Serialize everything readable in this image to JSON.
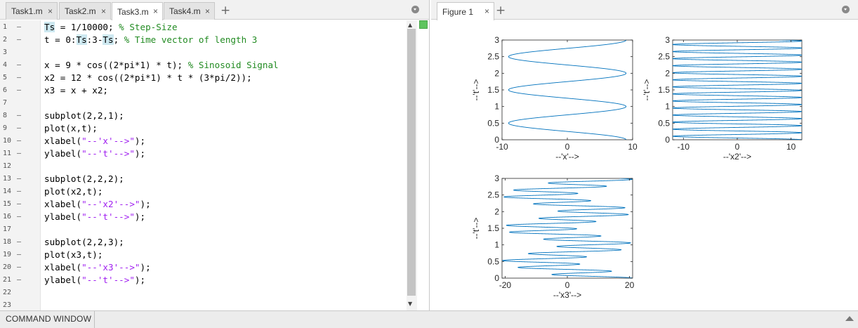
{
  "editor": {
    "tabs": [
      {
        "label": "Task1.m",
        "active": false
      },
      {
        "label": "Task2.m",
        "active": false
      },
      {
        "label": "Task3.m",
        "active": true
      },
      {
        "label": "Task4.m",
        "active": false
      }
    ],
    "close_glyph": "×",
    "add_glyph": "+",
    "status_color": "#5ec45e",
    "lines": [
      [
        [
          "hl",
          "Ts"
        ],
        [
          "t",
          " = 1/10000; "
        ],
        [
          "c",
          "% Step-Size"
        ]
      ],
      [
        [
          "t",
          "t = 0:"
        ],
        [
          "hl",
          "Ts"
        ],
        [
          "t",
          ":3-"
        ],
        [
          "hl",
          "Ts"
        ],
        [
          "t",
          "; "
        ],
        [
          "c",
          "% Time vector of length 3"
        ]
      ],
      [],
      [
        [
          "t",
          "x = 9 * cos((2*pi*1) * t); "
        ],
        [
          "c",
          "% Sinosoid Signal"
        ]
      ],
      [
        [
          "t",
          "x2 = 12 * cos((2*pi*1) * t * (3*pi/2));"
        ]
      ],
      [
        [
          "t",
          "x3 = x + x2;"
        ]
      ],
      [],
      [
        [
          "t",
          "subplot(2,2,1);"
        ]
      ],
      [
        [
          "t",
          "plot(x,t);"
        ]
      ],
      [
        [
          "t",
          "xlabel("
        ],
        [
          "s",
          "\"--'x'-->\""
        ],
        [
          "t",
          ");"
        ]
      ],
      [
        [
          "t",
          "ylabel("
        ],
        [
          "s",
          "\"--'t'-->\""
        ],
        [
          "t",
          ");"
        ]
      ],
      [],
      [
        [
          "t",
          "subplot(2,2,2);"
        ]
      ],
      [
        [
          "t",
          "plot(x2,t);"
        ]
      ],
      [
        [
          "t",
          "xlabel("
        ],
        [
          "s",
          "\"--'x2'-->\""
        ],
        [
          "t",
          ");"
        ]
      ],
      [
        [
          "t",
          "ylabel("
        ],
        [
          "s",
          "\"--'t'-->\""
        ],
        [
          "t",
          ");"
        ]
      ],
      [],
      [
        [
          "t",
          "subplot(2,2,3);"
        ]
      ],
      [
        [
          "t",
          "plot(x3,t);"
        ]
      ],
      [
        [
          "t",
          "xlabel("
        ],
        [
          "s",
          "\"--'x3'-->\""
        ],
        [
          "t",
          ");"
        ]
      ],
      [
        [
          "t",
          "ylabel("
        ],
        [
          "s",
          "\"--'t'-->\""
        ],
        [
          "t",
          ");"
        ]
      ],
      [],
      []
    ]
  },
  "figure": {
    "tab_label": "Figure 1",
    "close_glyph": "×",
    "add_glyph": "+",
    "line_color": "#0072bd"
  },
  "chart_data": [
    {
      "type": "line",
      "title": "",
      "xlabel": "--'x'-->",
      "ylabel": "--'t'-->",
      "xlim": [
        -10,
        10
      ],
      "ylim": [
        0,
        3
      ],
      "xticks": [
        -10,
        0,
        10
      ],
      "xtick_labels": [
        "-10",
        "0",
        "10"
      ],
      "yticks": [
        0,
        0.5,
        1,
        1.5,
        2,
        2.5,
        3
      ],
      "ytick_labels": [
        "0",
        "0.5",
        "1",
        "1.5",
        "2",
        "2.5",
        "3"
      ],
      "series": [
        {
          "expression": "x = 9 * cos(2*pi*t)",
          "amplitude_x": 9,
          "freq_x": 1,
          "amplitude_x2": 0,
          "freq_x2": 0
        }
      ]
    },
    {
      "type": "line",
      "title": "",
      "xlabel": "--'x2'-->",
      "ylabel": "--'t'-->",
      "xlim": [
        -12,
        12
      ],
      "ylim": [
        0,
        3
      ],
      "xticks": [
        -10,
        0,
        10
      ],
      "xtick_labels": [
        "-10",
        "0",
        "10"
      ],
      "yticks": [
        0,
        0.5,
        1,
        1.5,
        2,
        2.5,
        3
      ],
      "ytick_labels": [
        "0",
        "0.5",
        "1",
        "1.5",
        "2",
        "2.5",
        "3"
      ],
      "series": [
        {
          "expression": "x2 = 12 * cos(2*pi*t*(3*pi/2))",
          "amplitude_x": 0,
          "freq_x": 0,
          "amplitude_x2": 12,
          "freq_x2": 4.712389
        }
      ]
    },
    {
      "type": "line",
      "title": "",
      "xlabel": "--'x3'-->",
      "ylabel": "--'t'-->",
      "xlim": [
        -21,
        21
      ],
      "ylim": [
        0,
        3
      ],
      "xticks": [
        -20,
        0,
        20
      ],
      "xtick_labels": [
        "-20",
        "0",
        "20"
      ],
      "yticks": [
        0,
        0.5,
        1,
        1.5,
        2,
        2.5,
        3
      ],
      "ytick_labels": [
        "0",
        "0.5",
        "1",
        "1.5",
        "2",
        "2.5",
        "3"
      ],
      "series": [
        {
          "expression": "x3 = x + x2",
          "amplitude_x": 9,
          "freq_x": 1,
          "amplitude_x2": 12,
          "freq_x2": 4.712389
        }
      ]
    }
  ],
  "command_window": {
    "label": "COMMAND WINDOW"
  }
}
